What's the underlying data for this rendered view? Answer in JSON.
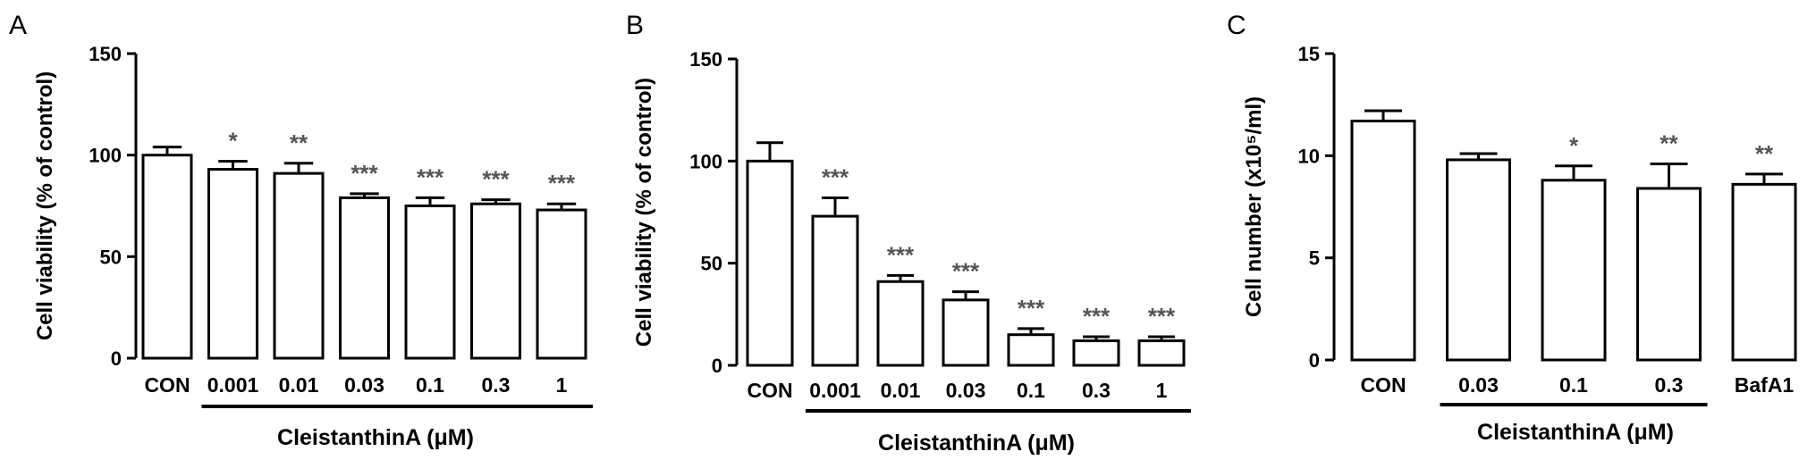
{
  "chart_data": [
    {
      "panel": "A",
      "type": "bar",
      "categories": [
        "CON",
        "0.001",
        "0.01",
        "0.03",
        "0.1",
        "0.3",
        "1"
      ],
      "values": [
        100,
        93,
        91,
        79,
        75,
        76,
        73
      ],
      "errors": [
        4,
        4,
        5,
        2,
        4,
        2,
        3
      ],
      "significance": [
        "",
        "*",
        "**",
        "***",
        "***",
        "***",
        "***"
      ],
      "ylabel": "Cell viability (% of control)",
      "xlabel": "CleistanthinA (μM)",
      "ylim": [
        0,
        150
      ],
      "yticks": [
        "0",
        "50",
        "100",
        "150"
      ],
      "bracket": [
        1,
        6
      ]
    },
    {
      "panel": "B",
      "type": "bar",
      "categories": [
        "CON",
        "0.001",
        "0.01",
        "0.03",
        "0.1",
        "0.3",
        "1"
      ],
      "values": [
        100,
        73,
        41,
        32,
        15,
        12,
        12
      ],
      "errors": [
        9,
        9,
        3,
        4,
        3,
        2,
        2
      ],
      "significance": [
        "",
        "***",
        "***",
        "***",
        "***",
        "***",
        "***"
      ],
      "ylabel": "Cell viability (% of control)",
      "xlabel": "CleistanthinA (μM)",
      "ylim": [
        0,
        150
      ],
      "yticks": [
        "0",
        "50",
        "100",
        "150"
      ],
      "bracket": [
        1,
        6
      ]
    },
    {
      "panel": "C",
      "type": "bar",
      "categories": [
        "CON",
        "0.03",
        "0.1",
        "0.3",
        "BafA1"
      ],
      "values": [
        11.7,
        9.8,
        8.8,
        8.4,
        8.6
      ],
      "errors": [
        0.5,
        0.3,
        0.7,
        1.2,
        0.5
      ],
      "significance": [
        "",
        "",
        "*",
        "**",
        "**"
      ],
      "ylabel": "Cell number (x10⁵/ml)",
      "xlabel": "CleistanthinA (μM)",
      "ylim": [
        0,
        15
      ],
      "yticks": [
        "0",
        "5",
        "10",
        "15"
      ],
      "bracket": [
        1,
        3
      ]
    }
  ]
}
